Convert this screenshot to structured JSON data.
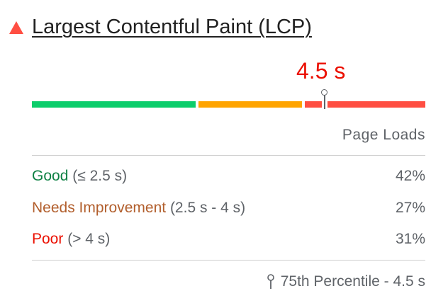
{
  "metric": {
    "title": "Largest Contentful Paint (LCP)",
    "status_icon": "red-triangle-icon",
    "value": "4.5 s",
    "value_color": "#eb0f00"
  },
  "distribution_bar": {
    "good_percent": 42,
    "needs_improvement_percent": 27,
    "poor_percent": 31,
    "marker_position_percent": 74.5,
    "colors": {
      "good": "#0cce6b",
      "needs_improvement": "#ffa400",
      "poor": "#ff4e42"
    }
  },
  "table": {
    "header": "Page Loads",
    "rows": [
      {
        "label": "Good",
        "range": "(≤ 2.5 s)",
        "value": "42%",
        "color": "#0d8043"
      },
      {
        "label": "Needs Improvement",
        "range": "(2.5 s - 4 s)",
        "value": "27%",
        "color": "#b25f2d"
      },
      {
        "label": "Poor",
        "range": "(> 4 s)",
        "value": "31%",
        "color": "#eb0f00"
      }
    ]
  },
  "footer": {
    "icon": "pin-icon",
    "text": "75th Percentile - 4.5 s"
  }
}
